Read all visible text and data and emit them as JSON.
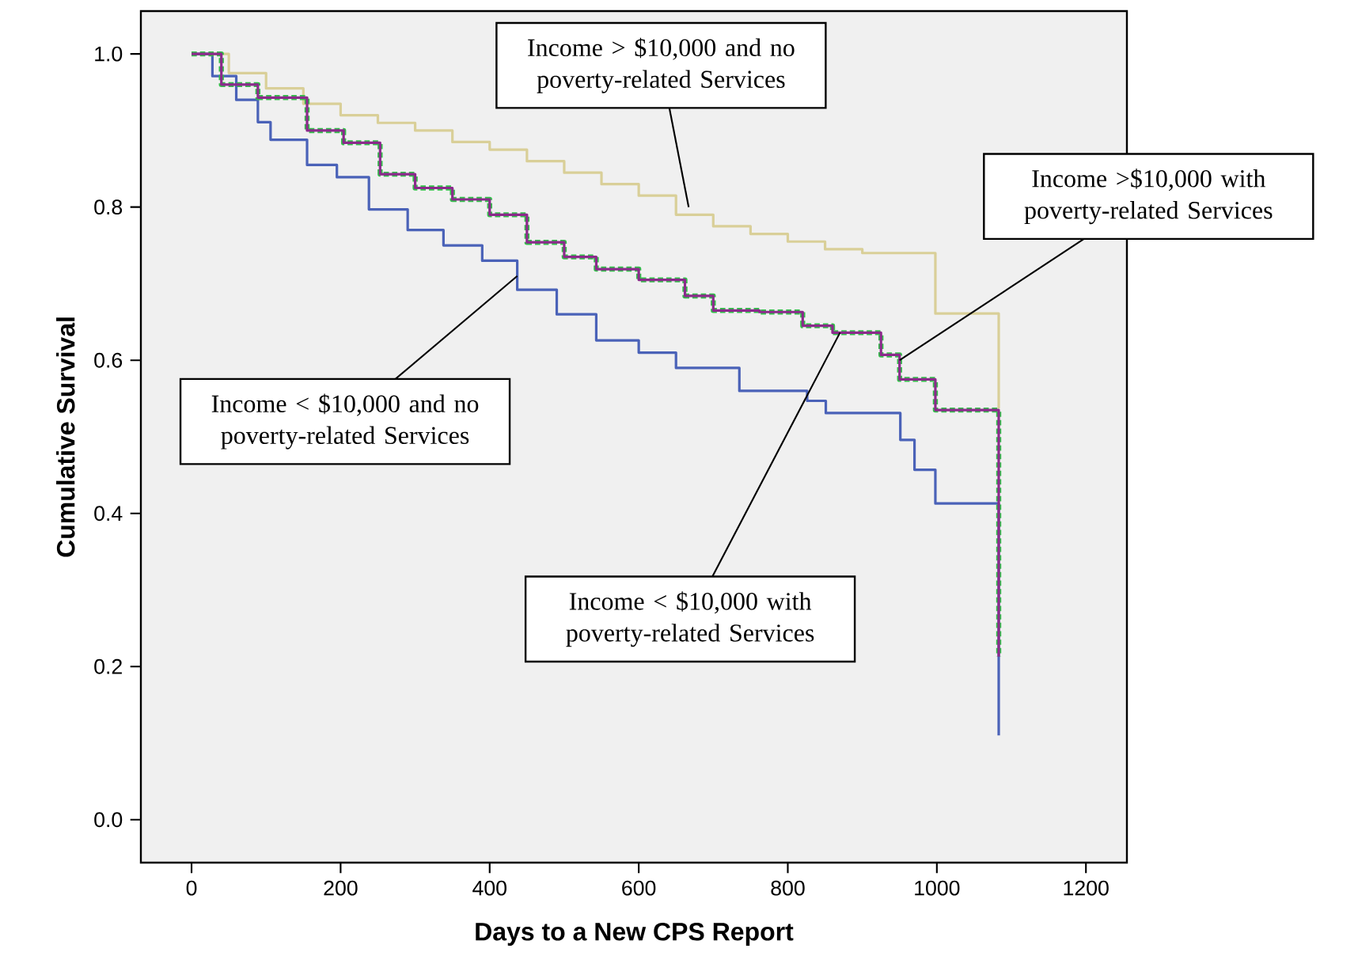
{
  "chart_data": {
    "type": "step",
    "xlabel": "Days to a New CPS Report",
    "ylabel": "Cumulative Survival",
    "xlim": [
      -68,
      1255
    ],
    "ylim": [
      -0.056,
      1.056
    ],
    "xticks": [
      0,
      200,
      400,
      600,
      800,
      1000,
      1200
    ],
    "yticks": [
      {
        "value": 0,
        "label": "0.0"
      },
      0.2,
      0.4,
      0.6,
      0.8,
      {
        "value": 1,
        "label": "1.0"
      }
    ],
    "grid": false,
    "marker": "none",
    "series": [
      {
        "color": "#d9cf98",
        "line_style": "solid",
        "x": [
          0,
          50,
          100,
          150,
          200,
          250,
          300,
          350,
          400,
          450,
          500,
          550,
          600,
          650,
          700,
          750,
          800,
          850,
          900,
          998,
          1083,
          1083
        ],
        "values": [
          1,
          0.975,
          0.955,
          0.935,
          0.92,
          0.91,
          0.9,
          0.885,
          0.875,
          0.86,
          0.845,
          0.83,
          0.815,
          0.79,
          0.775,
          0.765,
          0.755,
          0.745,
          0.74,
          0.661,
          0.661,
          0.537
        ]
      },
      {
        "color": "#4a62b8",
        "line_style": "solid",
        "x": [
          0,
          28,
          60,
          89,
          106,
          155,
          195,
          238,
          290,
          338,
          390,
          437,
          490,
          543,
          600,
          650,
          735,
          826,
          851,
          951,
          970,
          998,
          1083,
          1083
        ],
        "values": [
          1,
          0.971,
          0.94,
          0.911,
          0.888,
          0.855,
          0.839,
          0.797,
          0.77,
          0.75,
          0.73,
          0.692,
          0.66,
          0.626,
          0.61,
          0.59,
          0.56,
          0.547,
          0.531,
          0.496,
          0.457,
          0.413,
          0.413,
          0.11
        ]
      },
      {
        "color": "#33c04a",
        "line_style": "dashed",
        "x": [
          0,
          40,
          89,
          155,
          204,
          253,
          300,
          350,
          400,
          450,
          500,
          543,
          600,
          662,
          700,
          762,
          820,
          860,
          925,
          950,
          998,
          1083,
          1083
        ],
        "values": [
          1,
          0.96,
          0.943,
          0.9,
          0.884,
          0.843,
          0.825,
          0.81,
          0.79,
          0.754,
          0.735,
          0.719,
          0.705,
          0.684,
          0.665,
          0.663,
          0.645,
          0.636,
          0.607,
          0.575,
          0.535,
          0.535,
          0.213
        ]
      },
      {
        "color": "#8b2a8b",
        "line_style": "solid",
        "x": [
          0,
          40,
          89,
          155,
          204,
          253,
          300,
          350,
          400,
          450,
          500,
          543,
          600,
          662,
          700,
          762,
          820,
          860,
          925,
          950,
          998,
          1083,
          1083
        ],
        "values": [
          1,
          0.96,
          0.943,
          0.9,
          0.884,
          0.843,
          0.825,
          0.81,
          0.79,
          0.754,
          0.735,
          0.719,
          0.705,
          0.684,
          0.665,
          0.663,
          0.645,
          0.636,
          0.607,
          0.575,
          0.535,
          0.535,
          0.213
        ]
      }
    ],
    "annotations": [
      {
        "text": "Income > $10,000 and no poverty-related Services",
        "x": 667,
        "y": 0.8
      },
      {
        "text": "Income >$10,000 with poverty-related Services",
        "x": 950,
        "y": 0.6
      },
      {
        "text": "Income < $10,000 and no poverty-related Services",
        "x": 437,
        "y": 0.71
      },
      {
        "text": "Income < $10,000 with poverty-related Services",
        "x": 870,
        "y": 0.636
      }
    ]
  }
}
